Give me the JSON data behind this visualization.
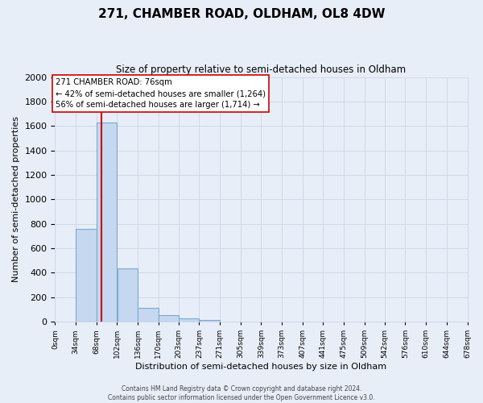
{
  "title": "271, CHAMBER ROAD, OLDHAM, OL8 4DW",
  "subtitle": "Size of property relative to semi-detached houses in Oldham",
  "xlabel": "Distribution of semi-detached houses by size in Oldham",
  "ylabel": "Number of semi-detached properties",
  "bin_labels": [
    "0sqm",
    "34sqm",
    "68sqm",
    "102sqm",
    "136sqm",
    "170sqm",
    "203sqm",
    "237sqm",
    "271sqm",
    "305sqm",
    "339sqm",
    "373sqm",
    "407sqm",
    "441sqm",
    "475sqm",
    "509sqm",
    "542sqm",
    "576sqm",
    "610sqm",
    "644sqm",
    "678sqm"
  ],
  "bin_edges": [
    0,
    34,
    68,
    102,
    136,
    170,
    203,
    237,
    271,
    305,
    339,
    373,
    407,
    441,
    475,
    509,
    542,
    576,
    610,
    644,
    678
  ],
  "bar_values": [
    0,
    760,
    1630,
    435,
    110,
    50,
    25,
    15,
    0,
    0,
    0,
    0,
    0,
    0,
    0,
    0,
    0,
    0,
    0,
    0
  ],
  "bar_color": "#c5d8f0",
  "bar_edge_color": "#7aaad0",
  "red_line_x": 76,
  "vline_color": "#cc0000",
  "annotation_text_line1": "271 CHAMBER ROAD: 76sqm",
  "annotation_text_line2": "← 42% of semi-detached houses are smaller (1,264)",
  "annotation_text_line3": "56% of semi-detached houses are larger (1,714) →",
  "annotation_box_color": "#ffffff",
  "annotation_box_edge": "#cc0000",
  "ylim": [
    0,
    2000
  ],
  "yticks": [
    0,
    200,
    400,
    600,
    800,
    1000,
    1200,
    1400,
    1600,
    1800,
    2000
  ],
  "grid_color": "#d0d8e8",
  "background_color": "#e8eef8",
  "footer_line1": "Contains HM Land Registry data © Crown copyright and database right 2024.",
  "footer_line2": "Contains public sector information licensed under the Open Government Licence v3.0."
}
